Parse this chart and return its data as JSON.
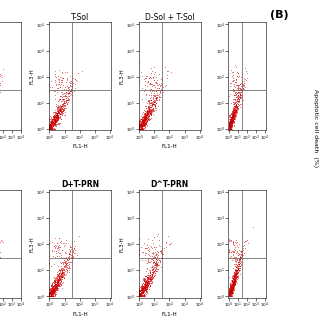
{
  "panel_titles_row0": [
    "",
    "T-Sol",
    "D-Sol + T-Sol",
    ""
  ],
  "panel_titles_row1": [
    "",
    "D+T-PRN",
    "D^T-PRN",
    ""
  ],
  "side_label": "Apoptotic cell death  (%)",
  "panel_label": "(B)",
  "dot_color": "#cc0000",
  "bg_color": "#ffffff",
  "xlabel": "FL1-H",
  "ylabel": "FL3-H",
  "quadrant_x": 30,
  "quadrant_y": 30,
  "xlim": [
    0.9,
    12000
  ],
  "ylim": [
    0.9,
    12000
  ],
  "title_row0_bold": false,
  "title_row1_bold": true
}
